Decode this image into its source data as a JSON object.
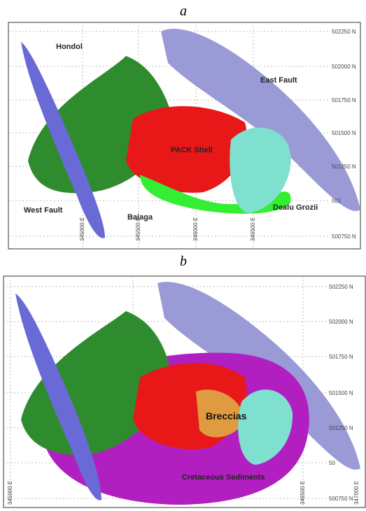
{
  "panels": [
    {
      "label": "a",
      "northings": [
        "502250 N",
        "502000 N",
        "501750 N",
        "501500 N",
        "501250 N",
        "501",
        "500750 N"
      ],
      "eastings": [
        "345000 E",
        "345500 E",
        "346000 E",
        "346500 E"
      ],
      "annotations": [
        "Hondol",
        "East Fault",
        "PACK Shell",
        "West Fault",
        "Baiaga",
        "Dealu Grozii"
      ]
    },
    {
      "label": "b",
      "northings": [
        "502250 N",
        "502000 N",
        "501750 N",
        "501500 N",
        "501250 N",
        "50",
        "500750 N"
      ],
      "eastings": [
        "345000 E",
        "346500 E",
        "347000 E"
      ],
      "annotations": [
        "Breccias",
        "Cretaceous Sediments"
      ]
    }
  ]
}
